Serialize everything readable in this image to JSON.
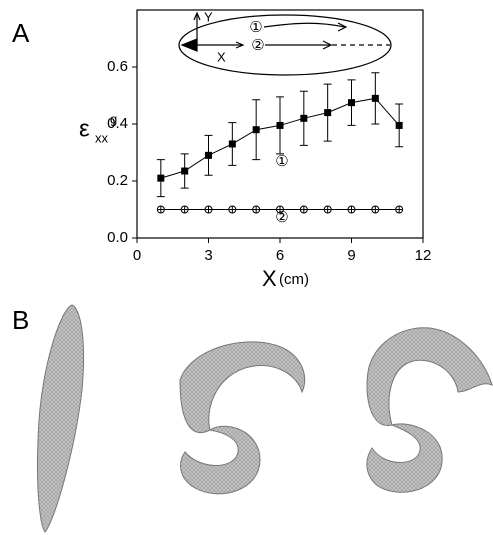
{
  "panels": [
    "A",
    "B"
  ],
  "chart_data": {
    "type": "line",
    "x_label": "X",
    "x_unit": "(cm)",
    "y_label": {
      "symbol": "ε",
      "superscript": "g",
      "subscript": "xx"
    },
    "inset": {
      "y_axis": "Y",
      "x_axis": "X"
    },
    "xlim": [
      0,
      12
    ],
    "xticks": [
      0,
      3,
      6,
      9,
      12
    ],
    "ylim": [
      0,
      0.8
    ],
    "yticks": [
      {
        "value": 0,
        "label": "0.0"
      },
      0.2,
      0.4,
      0.6
    ],
    "series": [
      {
        "name": "①",
        "color": "#000000",
        "marker": "square",
        "x": [
          1,
          2,
          3,
          4,
          5,
          6,
          7,
          8,
          9,
          10,
          11
        ],
        "values": [
          0.21,
          0.235,
          0.29,
          0.33,
          0.38,
          0.395,
          0.42,
          0.44,
          0.475,
          0.49,
          0.395
        ],
        "errors": [
          0.065,
          0.06,
          0.07,
          0.075,
          0.105,
          0.1,
          0.095,
          0.1,
          0.08,
          0.09,
          0.075
        ]
      },
      {
        "name": "②",
        "color": "#000000",
        "marker": "circle",
        "x": [
          1,
          2,
          3,
          4,
          5,
          6,
          7,
          8,
          9,
          10,
          11
        ],
        "values": [
          0.1,
          0.1,
          0.1,
          0.1,
          0.1,
          0.1,
          0.1,
          0.1,
          0.1,
          0.1,
          0.1
        ]
      }
    ]
  }
}
